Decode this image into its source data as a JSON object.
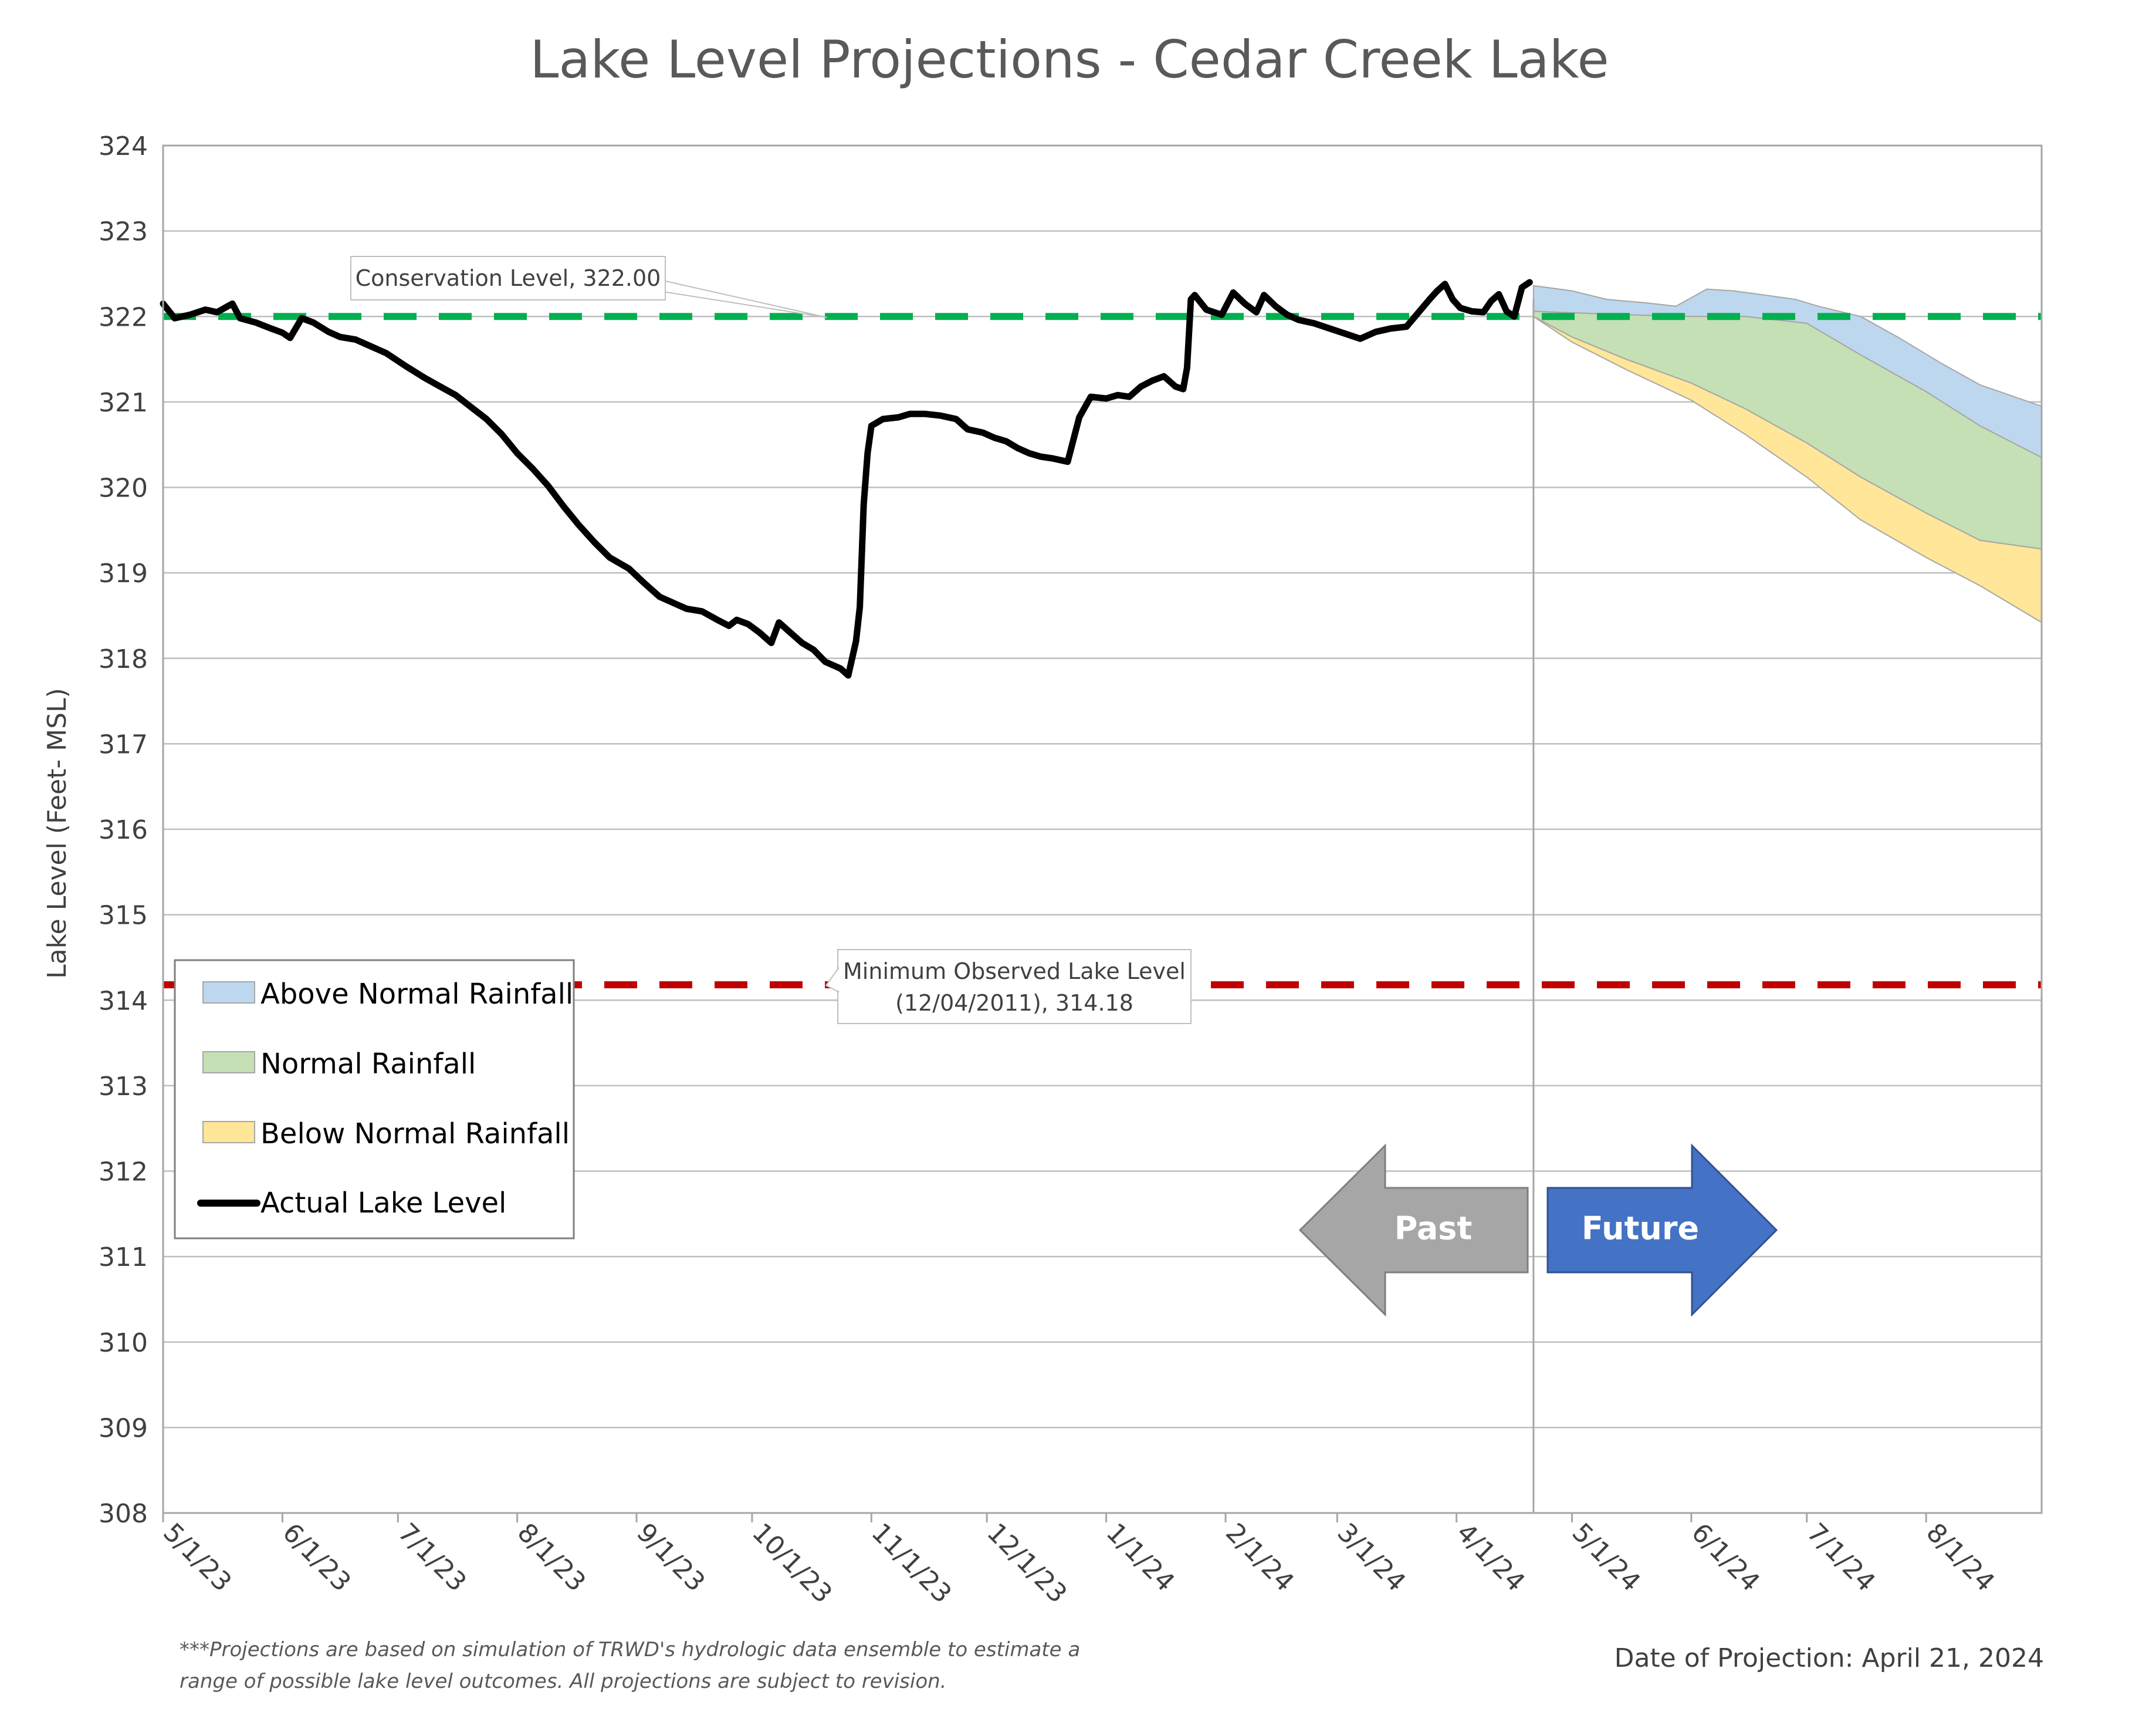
{
  "chart_data": {
    "type": "line",
    "title": "Lake Level Projections - Cedar Creek Lake",
    "ylabel": "Lake Level (Feet- MSL)",
    "xlabel": "",
    "ylim": [
      308,
      324
    ],
    "yticks": [
      308,
      309,
      310,
      311,
      312,
      313,
      314,
      315,
      316,
      317,
      318,
      319,
      320,
      321,
      322,
      323,
      324
    ],
    "xlim": [
      "2023-05-01",
      "2024-08-31"
    ],
    "xticks": [
      {
        "date": "2023-05-01",
        "label": "5/1/23"
      },
      {
        "date": "2023-06-01",
        "label": "6/1/23"
      },
      {
        "date": "2023-07-01",
        "label": "7/1/23"
      },
      {
        "date": "2023-08-01",
        "label": "8/1/23"
      },
      {
        "date": "2023-09-01",
        "label": "9/1/23"
      },
      {
        "date": "2023-10-01",
        "label": "10/1/23"
      },
      {
        "date": "2023-11-01",
        "label": "11/1/23"
      },
      {
        "date": "2023-12-01",
        "label": "12/1/23"
      },
      {
        "date": "2024-01-01",
        "label": "1/1/24"
      },
      {
        "date": "2024-02-01",
        "label": "2/1/24"
      },
      {
        "date": "2024-03-01",
        "label": "3/1/24"
      },
      {
        "date": "2024-04-01",
        "label": "4/1/24"
      },
      {
        "date": "2024-05-01",
        "label": "5/1/24"
      },
      {
        "date": "2024-06-01",
        "label": "6/1/24"
      },
      {
        "date": "2024-07-01",
        "label": "7/1/24"
      },
      {
        "date": "2024-08-01",
        "label": "8/1/24"
      }
    ],
    "grid": true,
    "legend_position": "bottom-left",
    "legend": [
      {
        "name": "Above Normal Rainfall",
        "kind": "area",
        "color": "#bdd7ee"
      },
      {
        "name": "Normal Rainfall",
        "kind": "area",
        "color": "#c5e0b4"
      },
      {
        "name": "Below Normal Rainfall",
        "kind": "area",
        "color": "#ffe699"
      },
      {
        "name": "Actual Lake Level",
        "kind": "line",
        "color": "#000000"
      }
    ],
    "reference_lines": [
      {
        "value": 322.0,
        "label": "Conservation Level, 322.00",
        "color": "#00b050",
        "style": "dashed"
      },
      {
        "value": 314.18,
        "label_line1": "Minimum Observed Lake Level",
        "label_line2": "(12/04/2011), 314.18",
        "color": "#c00000",
        "style": "dashed"
      }
    ],
    "projection_date_line": "2024-04-21",
    "series": [
      {
        "name": "Actual Lake Level",
        "color": "#000000",
        "points": [
          [
            "2023-05-01",
            322.15
          ],
          [
            "2023-05-04",
            321.98
          ],
          [
            "2023-05-08",
            322.02
          ],
          [
            "2023-05-12",
            322.08
          ],
          [
            "2023-05-15",
            322.05
          ],
          [
            "2023-05-19",
            322.15
          ],
          [
            "2023-05-21",
            321.98
          ],
          [
            "2023-05-25",
            321.93
          ],
          [
            "2023-05-29",
            321.86
          ],
          [
            "2023-06-01",
            321.81
          ],
          [
            "2023-06-03",
            321.75
          ],
          [
            "2023-06-06",
            321.98
          ],
          [
            "2023-06-09",
            321.93
          ],
          [
            "2023-06-13",
            321.82
          ],
          [
            "2023-06-16",
            321.76
          ],
          [
            "2023-06-20",
            321.73
          ],
          [
            "2023-06-24",
            321.65
          ],
          [
            "2023-06-28",
            321.57
          ],
          [
            "2023-07-03",
            321.42
          ],
          [
            "2023-07-08",
            321.28
          ],
          [
            "2023-07-12",
            321.18
          ],
          [
            "2023-07-16",
            321.08
          ],
          [
            "2023-07-20",
            320.94
          ],
          [
            "2023-07-24",
            320.8
          ],
          [
            "2023-07-28",
            320.62
          ],
          [
            "2023-08-01",
            320.4
          ],
          [
            "2023-08-05",
            320.22
          ],
          [
            "2023-08-09",
            320.02
          ],
          [
            "2023-08-13",
            319.78
          ],
          [
            "2023-08-17",
            319.56
          ],
          [
            "2023-08-21",
            319.36
          ],
          [
            "2023-08-25",
            319.18
          ],
          [
            "2023-08-30",
            319.05
          ],
          [
            "2023-09-03",
            318.88
          ],
          [
            "2023-09-07",
            318.72
          ],
          [
            "2023-09-11",
            318.64
          ],
          [
            "2023-09-14",
            318.58
          ],
          [
            "2023-09-18",
            318.55
          ],
          [
            "2023-09-22",
            318.45
          ],
          [
            "2023-09-25",
            318.38
          ],
          [
            "2023-09-27",
            318.45
          ],
          [
            "2023-09-30",
            318.4
          ],
          [
            "2023-10-03",
            318.3
          ],
          [
            "2023-10-06",
            318.18
          ],
          [
            "2023-10-08",
            318.42
          ],
          [
            "2023-10-11",
            318.3
          ],
          [
            "2023-10-14",
            318.18
          ],
          [
            "2023-10-17",
            318.1
          ],
          [
            "2023-10-20",
            317.96
          ],
          [
            "2023-10-24",
            317.88
          ],
          [
            "2023-10-26",
            317.8
          ],
          [
            "2023-10-28",
            318.2
          ],
          [
            "2023-10-29",
            318.6
          ],
          [
            "2023-10-30",
            319.8
          ],
          [
            "2023-10-31",
            320.4
          ],
          [
            "2023-11-01",
            320.72
          ],
          [
            "2023-11-04",
            320.8
          ],
          [
            "2023-11-08",
            320.82
          ],
          [
            "2023-11-11",
            320.86
          ],
          [
            "2023-11-15",
            320.86
          ],
          [
            "2023-11-19",
            320.84
          ],
          [
            "2023-11-23",
            320.8
          ],
          [
            "2023-11-26",
            320.68
          ],
          [
            "2023-11-30",
            320.64
          ],
          [
            "2023-12-03",
            320.58
          ],
          [
            "2023-12-06",
            320.54
          ],
          [
            "2023-12-09",
            320.46
          ],
          [
            "2023-12-12",
            320.4
          ],
          [
            "2023-12-15",
            320.36
          ],
          [
            "2023-12-18",
            320.34
          ],
          [
            "2023-12-22",
            320.3
          ],
          [
            "2023-12-25",
            320.82
          ],
          [
            "2023-12-28",
            321.06
          ],
          [
            "2024-01-01",
            321.04
          ],
          [
            "2024-01-04",
            321.08
          ],
          [
            "2024-01-07",
            321.06
          ],
          [
            "2024-01-10",
            321.18
          ],
          [
            "2024-01-13",
            321.25
          ],
          [
            "2024-01-16",
            321.3
          ],
          [
            "2024-01-19",
            321.18
          ],
          [
            "2024-01-21",
            321.15
          ],
          [
            "2024-01-22",
            321.4
          ],
          [
            "2024-01-23",
            322.2
          ],
          [
            "2024-01-24",
            322.25
          ],
          [
            "2024-01-27",
            322.08
          ],
          [
            "2024-01-31",
            322.02
          ],
          [
            "2024-02-03",
            322.28
          ],
          [
            "2024-02-06",
            322.15
          ],
          [
            "2024-02-09",
            322.05
          ],
          [
            "2024-02-11",
            322.25
          ],
          [
            "2024-02-14",
            322.12
          ],
          [
            "2024-02-17",
            322.02
          ],
          [
            "2024-02-20",
            321.96
          ],
          [
            "2024-02-24",
            321.92
          ],
          [
            "2024-02-28",
            321.86
          ],
          [
            "2024-03-03",
            321.8
          ],
          [
            "2024-03-07",
            321.74
          ],
          [
            "2024-03-11",
            321.82
          ],
          [
            "2024-03-15",
            321.86
          ],
          [
            "2024-03-19",
            321.88
          ],
          [
            "2024-03-22",
            322.04
          ],
          [
            "2024-03-25",
            322.2
          ],
          [
            "2024-03-27",
            322.3
          ],
          [
            "2024-03-29",
            322.38
          ],
          [
            "2024-03-31",
            322.2
          ],
          [
            "2024-04-02",
            322.1
          ],
          [
            "2024-04-05",
            322.06
          ],
          [
            "2024-04-08",
            322.05
          ],
          [
            "2024-04-10",
            322.18
          ],
          [
            "2024-04-12",
            322.26
          ],
          [
            "2024-04-14",
            322.06
          ],
          [
            "2024-04-16",
            322.0
          ],
          [
            "2024-04-18",
            322.34
          ],
          [
            "2024-04-20",
            322.4
          ]
        ]
      },
      {
        "name": "Above Normal Rainfall",
        "color": "#bdd7ee",
        "lower": [
          [
            "2024-04-21",
            322.06
          ],
          [
            "2024-05-15",
            322.02
          ],
          [
            "2024-06-01",
            322.0
          ],
          [
            "2024-06-15",
            322.0
          ],
          [
            "2024-07-01",
            321.92
          ],
          [
            "2024-07-15",
            321.55
          ],
          [
            "2024-08-01",
            321.12
          ],
          [
            "2024-08-15",
            320.72
          ],
          [
            "2024-08-31",
            320.35
          ]
        ],
        "upper": [
          [
            "2024-04-21",
            322.36
          ],
          [
            "2024-05-01",
            322.3
          ],
          [
            "2024-05-10",
            322.2
          ],
          [
            "2024-05-20",
            322.16
          ],
          [
            "2024-05-28",
            322.12
          ],
          [
            "2024-06-05",
            322.32
          ],
          [
            "2024-06-12",
            322.3
          ],
          [
            "2024-06-20",
            322.25
          ],
          [
            "2024-06-28",
            322.2
          ],
          [
            "2024-07-04",
            322.12
          ],
          [
            "2024-07-15",
            322.0
          ],
          [
            "2024-07-25",
            321.75
          ],
          [
            "2024-08-05",
            321.45
          ],
          [
            "2024-08-15",
            321.2
          ],
          [
            "2024-08-31",
            320.95
          ]
        ]
      },
      {
        "name": "Normal Rainfall",
        "color": "#c5e0b4",
        "lower": [
          [
            "2024-04-21",
            322.0
          ],
          [
            "2024-05-01",
            321.76
          ],
          [
            "2024-05-15",
            321.5
          ],
          [
            "2024-06-01",
            321.22
          ],
          [
            "2024-06-15",
            320.92
          ],
          [
            "2024-07-01",
            320.52
          ],
          [
            "2024-07-15",
            320.12
          ],
          [
            "2024-08-01",
            319.7
          ],
          [
            "2024-08-15",
            319.38
          ],
          [
            "2024-08-31",
            319.28
          ]
        ],
        "upper": [
          [
            "2024-04-21",
            322.06
          ],
          [
            "2024-05-15",
            322.02
          ],
          [
            "2024-06-01",
            322.0
          ],
          [
            "2024-06-15",
            322.0
          ],
          [
            "2024-07-01",
            321.92
          ],
          [
            "2024-07-15",
            321.55
          ],
          [
            "2024-08-01",
            321.12
          ],
          [
            "2024-08-15",
            320.72
          ],
          [
            "2024-08-31",
            320.35
          ]
        ]
      },
      {
        "name": "Below Normal Rainfall",
        "color": "#ffe699",
        "lower": [
          [
            "2024-04-21",
            322.0
          ],
          [
            "2024-05-01",
            321.7
          ],
          [
            "2024-05-15",
            321.38
          ],
          [
            "2024-06-01",
            321.02
          ],
          [
            "2024-06-15",
            320.62
          ],
          [
            "2024-07-01",
            320.12
          ],
          [
            "2024-07-15",
            319.62
          ],
          [
            "2024-08-01",
            319.18
          ],
          [
            "2024-08-15",
            318.85
          ],
          [
            "2024-08-31",
            318.42
          ]
        ],
        "upper": [
          [
            "2024-04-21",
            322.0
          ],
          [
            "2024-05-01",
            321.76
          ],
          [
            "2024-05-15",
            321.5
          ],
          [
            "2024-06-01",
            321.22
          ],
          [
            "2024-06-15",
            320.92
          ],
          [
            "2024-07-01",
            320.52
          ],
          [
            "2024-07-15",
            320.12
          ],
          [
            "2024-08-01",
            319.7
          ],
          [
            "2024-08-15",
            319.38
          ],
          [
            "2024-08-31",
            319.28
          ]
        ]
      }
    ],
    "arrows": {
      "past_label": "Past",
      "future_label": "Future"
    },
    "footnote_line1": "***Projections are based on simulation of TRWD's hydrologic data ensemble to estimate a",
    "footnote_line2": "range of possible lake level outcomes.  All projections are subject to revision.",
    "projection_date_text": "Date of Projection: April 21, 2024"
  }
}
